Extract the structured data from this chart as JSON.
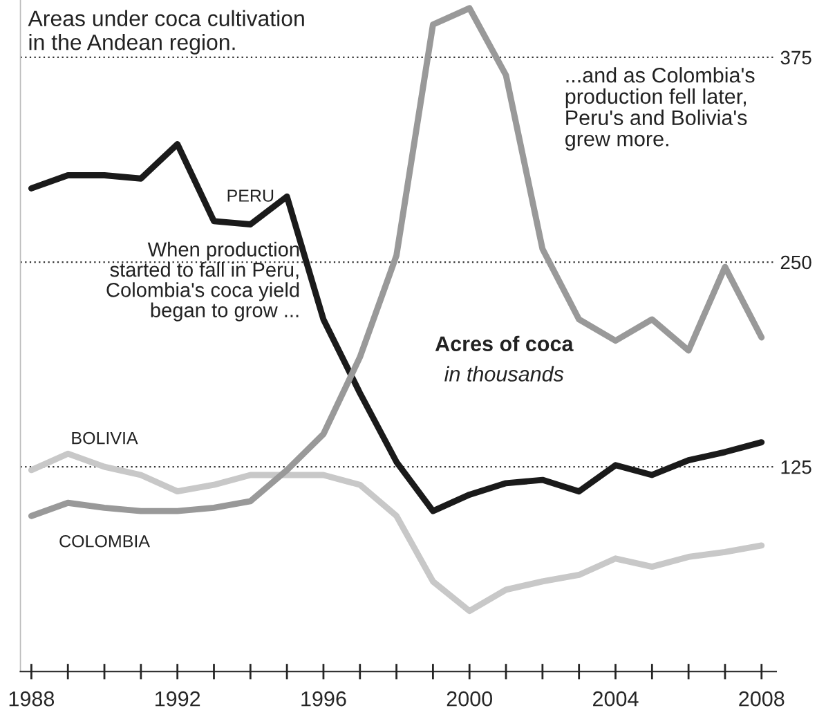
{
  "chart_data": {
    "type": "line",
    "title": "Areas under coca cultivation\nin the Andean region.",
    "x": [
      1988,
      1989,
      1990,
      1991,
      1992,
      1993,
      1994,
      1995,
      1996,
      1997,
      1998,
      1999,
      2000,
      2001,
      2002,
      2003,
      2004,
      2005,
      2006,
      2007,
      2008
    ],
    "series": [
      {
        "name": "PERU",
        "color": "#1a1a1a",
        "values": [
          295,
          303,
          303,
          301,
          322,
          275,
          273,
          290,
          215,
          170,
          128,
          98,
          108,
          115,
          117,
          110,
          126,
          120,
          129,
          134,
          140
        ]
      },
      {
        "name": "BOLIVIA",
        "color": "#c8c8c8",
        "values": [
          123,
          133,
          125,
          120,
          110,
          114,
          120,
          120,
          120,
          114,
          95,
          55,
          37,
          50,
          55,
          59,
          69,
          64,
          70,
          73,
          77
        ]
      },
      {
        "name": "COLOMBIA",
        "color": "#999999",
        "values": [
          95,
          103,
          100,
          98,
          98,
          100,
          104,
          123,
          145,
          192,
          254,
          395,
          405,
          364,
          258,
          215,
          202,
          215,
          196,
          247,
          204
        ]
      }
    ],
    "annotations": [
      "Acres of coca",
      "in thousands",
      "When production\nstarted to fall in Peru,\nColombia's coca yield\nbegan to grow ...",
      "...and as Colombia's\nproduction fell later,\nPeru's and Bolivia's\ngrew more."
    ],
    "xlim": [
      1987.7,
      2008.4
    ],
    "ylim": [
      0,
      410
    ],
    "xticks": [
      1988,
      {
        "value": 1989,
        "label": null
      },
      {
        "value": 1990,
        "label": null
      },
      {
        "value": 1991,
        "label": null
      },
      1992,
      {
        "value": 1993,
        "label": null
      },
      {
        "value": 1994,
        "label": null
      },
      {
        "value": 1995,
        "label": null
      },
      1996,
      {
        "value": 1997,
        "label": null
      },
      {
        "value": 1998,
        "label": null
      },
      {
        "value": 1999,
        "label": null
      },
      2000,
      {
        "value": 2001,
        "label": null
      },
      {
        "value": 2002,
        "label": null
      },
      {
        "value": 2003,
        "label": null
      },
      2004,
      {
        "value": 2005,
        "label": null
      },
      {
        "value": 2006,
        "label": null
      },
      {
        "value": 2007,
        "label": null
      },
      2008
    ],
    "yticks": [
      125,
      250,
      375
    ],
    "grid": "y",
    "legend": false,
    "line_style": "solid",
    "marker": "none"
  }
}
